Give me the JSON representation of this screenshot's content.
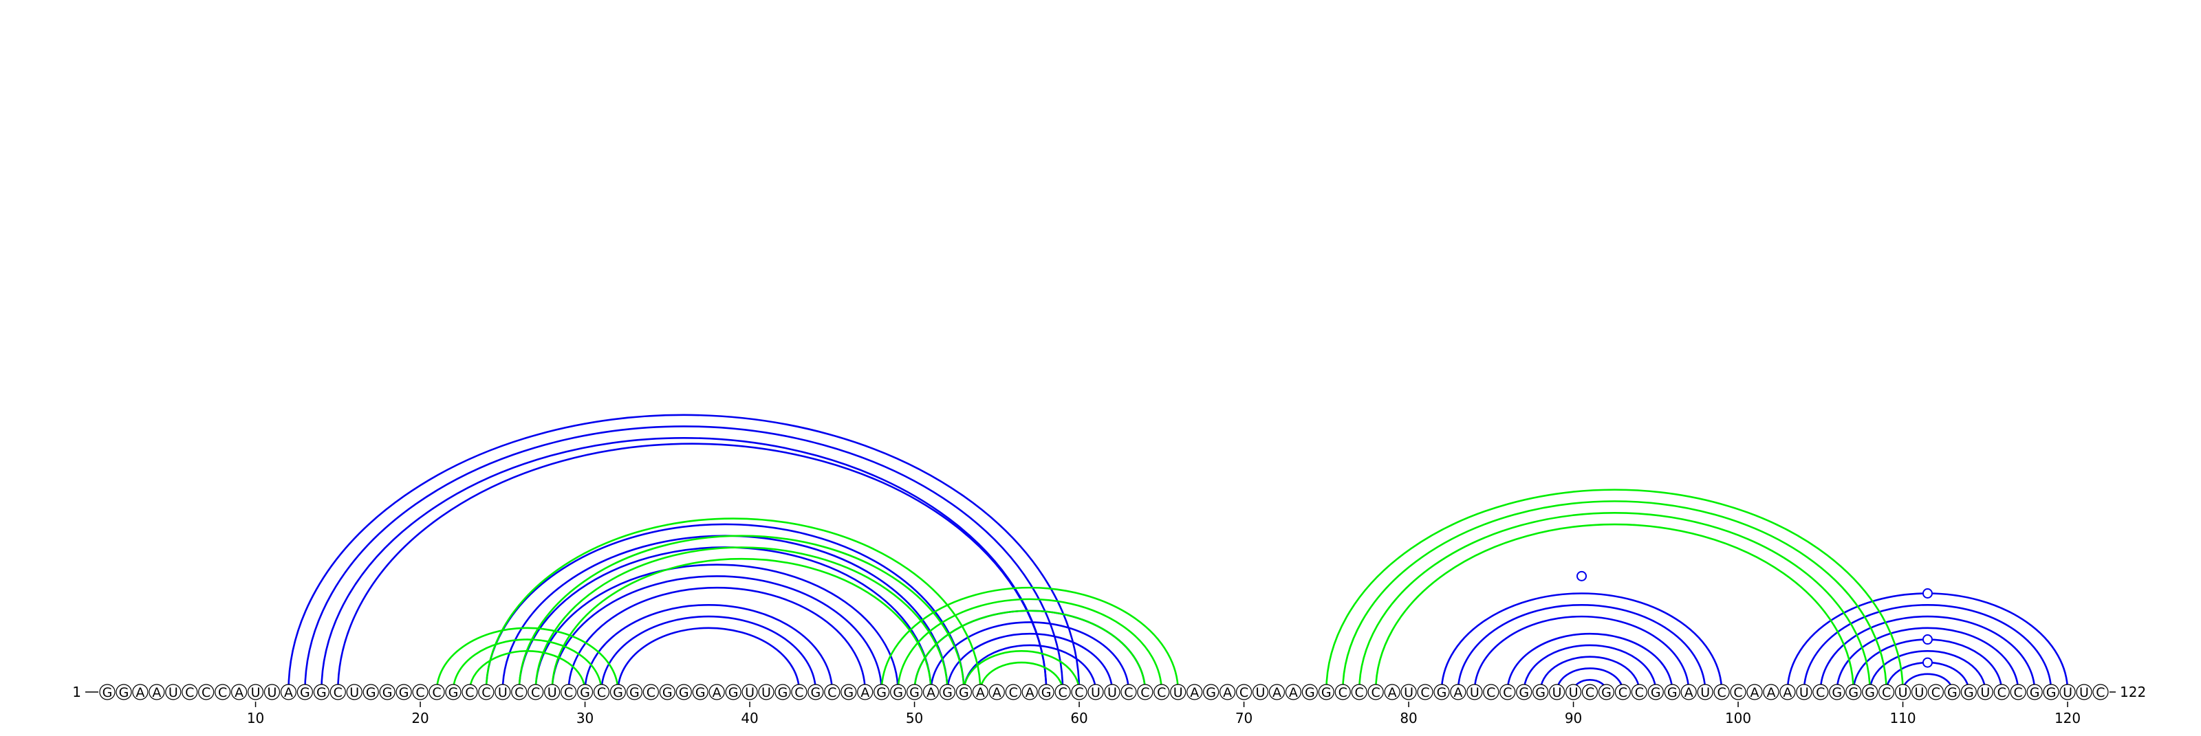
{
  "diagram": {
    "type": "rna-arc-diagram",
    "sequence": "GGAAUCCCAUUAGGCUGGGCCGCCUCCUCGCGGCGGGAGUUGCGCGAGGGAGGAACAGCCUUCCCUAGACUAAGGCCCAUCGAUCCGGUUCGCCGGAUCCAAAUCGGGCUUCGGUCCGGUUC",
    "start_label": "1",
    "end_label": "122",
    "tick_labels": [
      "10",
      "20",
      "30",
      "40",
      "50",
      "60",
      "70",
      "80",
      "90",
      "100",
      "110",
      "120"
    ],
    "colors": {
      "blue": "#0000ee",
      "green": "#00ee00",
      "text": "#000000"
    },
    "arcs": [
      {
        "i": 12,
        "j": 60,
        "color": "blue"
      },
      {
        "i": 13,
        "j": 59,
        "color": "blue"
      },
      {
        "i": 14,
        "j": 58,
        "color": "blue"
      },
      {
        "i": 15,
        "j": 58,
        "color": "blue"
      },
      {
        "i": 24,
        "j": 53,
        "color": "blue"
      },
      {
        "i": 25,
        "j": 52,
        "color": "blue"
      },
      {
        "i": 26,
        "j": 51,
        "color": "blue"
      },
      {
        "i": 27,
        "j": 49,
        "color": "blue"
      },
      {
        "i": 28,
        "j": 48,
        "color": "blue"
      },
      {
        "i": 29,
        "j": 47,
        "color": "blue"
      },
      {
        "i": 30,
        "j": 45,
        "color": "blue"
      },
      {
        "i": 31,
        "j": 44,
        "color": "blue"
      },
      {
        "i": 32,
        "j": 43,
        "color": "blue"
      },
      {
        "i": 50,
        "j": 64,
        "color": "blue"
      },
      {
        "i": 51,
        "j": 63,
        "color": "blue"
      },
      {
        "i": 52,
        "j": 62,
        "color": "blue"
      },
      {
        "i": 53,
        "j": 61,
        "color": "blue"
      },
      {
        "i": 82,
        "j": 99,
        "color": "blue"
      },
      {
        "i": 83,
        "j": 98,
        "color": "blue"
      },
      {
        "i": 84,
        "j": 97,
        "color": "blue"
      },
      {
        "i": 86,
        "j": 96,
        "color": "blue"
      },
      {
        "i": 87,
        "j": 95,
        "color": "blue"
      },
      {
        "i": 88,
        "j": 94,
        "color": "blue"
      },
      {
        "i": 89,
        "j": 93,
        "color": "blue"
      },
      {
        "i": 90,
        "j": 92,
        "color": "blue"
      },
      {
        "i": 103,
        "j": 120,
        "color": "blue"
      },
      {
        "i": 104,
        "j": 119,
        "color": "blue"
      },
      {
        "i": 105,
        "j": 118,
        "color": "blue"
      },
      {
        "i": 106,
        "j": 117,
        "color": "blue"
      },
      {
        "i": 107,
        "j": 116,
        "color": "blue"
      },
      {
        "i": 108,
        "j": 115,
        "color": "blue"
      },
      {
        "i": 109,
        "j": 114,
        "color": "blue"
      },
      {
        "i": 110,
        "j": 113,
        "color": "blue"
      },
      {
        "i": 21,
        "j": 32,
        "color": "green"
      },
      {
        "i": 22,
        "j": 31,
        "color": "green"
      },
      {
        "i": 23,
        "j": 30,
        "color": "green"
      },
      {
        "i": 24,
        "j": 54,
        "color": "green"
      },
      {
        "i": 26,
        "j": 53,
        "color": "green"
      },
      {
        "i": 27,
        "j": 52,
        "color": "green"
      },
      {
        "i": 28,
        "j": 51,
        "color": "green"
      },
      {
        "i": 48,
        "j": 66,
        "color": "green"
      },
      {
        "i": 49,
        "j": 65,
        "color": "green"
      },
      {
        "i": 50,
        "j": 64,
        "color": "green"
      },
      {
        "i": 53,
        "j": 60,
        "color": "green"
      },
      {
        "i": 54,
        "j": 59,
        "color": "green"
      },
      {
        "i": 75,
        "j": 110,
        "color": "green"
      },
      {
        "i": 76,
        "j": 109,
        "color": "green"
      },
      {
        "i": 77,
        "j": 108,
        "color": "green"
      },
      {
        "i": 78,
        "j": 107,
        "color": "green"
      }
    ],
    "markers": [
      {
        "pos": 90.5,
        "on_arc": 8
      },
      {
        "pos": 111.5,
        "on_arc": 25
      },
      {
        "pos": 111.5,
        "on_arc": 29
      },
      {
        "pos": 111.5,
        "on_arc": 31
      }
    ]
  }
}
